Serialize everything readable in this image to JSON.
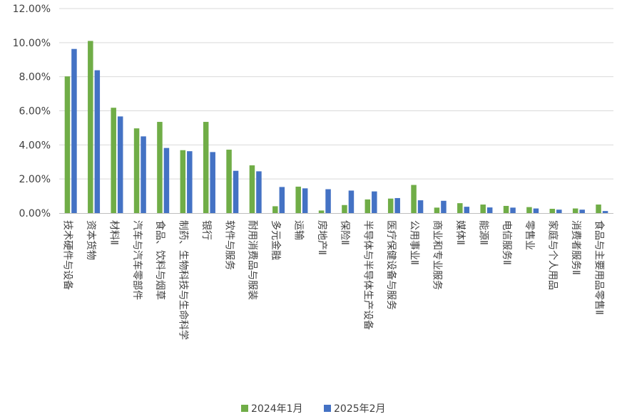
{
  "chart_data": {
    "type": "bar",
    "categories": [
      "技术硬件与设备",
      "资本货物",
      "材料Ⅱ",
      "汽车与汽车零部件",
      "食品、饮料与烟草",
      "制药、生物科技与生命科学",
      "银行",
      "软件与服务",
      "耐用消费品与服装",
      "多元金融",
      "运输",
      "房地产Ⅱ",
      "保险Ⅱ",
      "半导体与半导体生产设备",
      "医疗保健设备与服务",
      "公用事业Ⅱ",
      "商业和专业服务",
      "媒体Ⅱ",
      "能源Ⅱ",
      "电信服务Ⅱ",
      "零售业",
      "家庭与个人用品",
      "消费者服务Ⅱ",
      "食品与主要用品零售Ⅱ"
    ],
    "series": [
      {
        "name": "2024年1月",
        "color": "#70ad47",
        "values": [
          8.02,
          10.1,
          6.18,
          4.97,
          5.35,
          3.69,
          5.35,
          3.72,
          2.8,
          0.4,
          1.55,
          0.15,
          0.47,
          0.8,
          0.85,
          1.65,
          0.32,
          0.58,
          0.5,
          0.42,
          0.35,
          0.25,
          0.27,
          0.5
        ]
      },
      {
        "name": "2025年2月",
        "color": "#4472c4",
        "values": [
          9.63,
          8.38,
          5.67,
          4.5,
          3.82,
          3.63,
          3.58,
          2.48,
          2.45,
          1.53,
          1.45,
          1.4,
          1.32,
          1.27,
          0.88,
          0.75,
          0.72,
          0.37,
          0.33,
          0.32,
          0.27,
          0.2,
          0.2,
          0.12
        ]
      }
    ],
    "yticks": [
      "0.00%",
      "2.00%",
      "4.00%",
      "6.00%",
      "8.00%",
      "10.00%",
      "12.00%"
    ],
    "ylim": [
      0,
      12
    ],
    "grid": true,
    "legend_position": "bottom",
    "title": "",
    "xlabel": "",
    "ylabel": ""
  }
}
